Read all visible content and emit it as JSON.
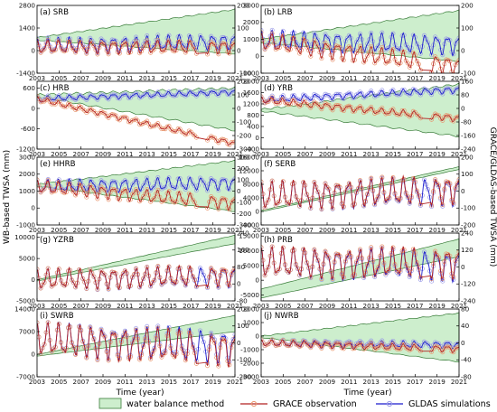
{
  "figure": {
    "y_left_title": "WB-based TWSA (mm)",
    "y_right_title": "GRACE/GLDAS-based TWSA (mm)",
    "x_title": "Time (year)",
    "x_tick_labels": [
      "2003",
      "2005",
      "2007",
      "2009",
      "2011",
      "2013",
      "2015",
      "2017",
      "2019",
      "2021"
    ],
    "legend": {
      "water_balance": "water balance method",
      "grace": "GRACE observation",
      "gldas": "GLDAS simulations"
    },
    "colors": {
      "band_fill": "#cdeecd",
      "band_edge": "#3a7d3a",
      "grace_line": "#b22222",
      "grace_marker": "#e8946c",
      "gldas_line": "#1a1acd",
      "gldas_marker": "#9a9ae6"
    }
  },
  "chart_data": [
    {
      "type": "area",
      "title": "(a) SRB",
      "xlim": [
        2003,
        2021
      ],
      "y_left": {
        "ticks": [
          -1400,
          0,
          1400,
          2800
        ],
        "tick_labels": [
          "-1400",
          "0",
          "1400",
          "2800"
        ],
        "range": [
          -1400,
          2800
        ]
      },
      "y_right": {
        "ticks": [
          -100,
          0,
          100,
          200
        ],
        "tick_labels": [
          "-100",
          "0",
          "100",
          "200"
        ],
        "range": [
          -100,
          200
        ]
      },
      "wb_band": {
        "year": [
          2003,
          2021
        ],
        "upper": [
          800,
          2550
        ],
        "lower": [
          650,
          -200
        ]
      },
      "grace": {
        "base": 15,
        "amp": 30,
        "cycles": 1,
        "trend": 0
      },
      "gldas": {
        "base": 20,
        "amp": 35,
        "cycles": 1,
        "trend": 20
      }
    },
    {
      "type": "area",
      "title": "(b) LRB",
      "xlim": [
        2003,
        2021
      ],
      "y_left": {
        "ticks": [
          -1000,
          0,
          1000,
          2000,
          3000
        ],
        "tick_labels": [
          "-1000",
          "0",
          "1000",
          "2000",
          "3000"
        ],
        "range": [
          -1000,
          3000
        ]
      },
      "y_right": {
        "ticks": [
          -100,
          0,
          100,
          200
        ],
        "tick_labels": [
          "-100",
          "0",
          "100",
          "200"
        ],
        "range": [
          -100,
          200
        ]
      },
      "wb_band": {
        "year": [
          2003,
          2021
        ],
        "upper": [
          1000,
          2700
        ],
        "lower": [
          800,
          -300
        ]
      },
      "grace": {
        "base": 40,
        "amp": 40,
        "cycles": 1,
        "trend": -110
      },
      "gldas": {
        "base": 45,
        "amp": 45,
        "cycles": 1,
        "trend": -20
      }
    },
    {
      "type": "area",
      "title": "(c) HRB",
      "xlim": [
        2003,
        2021
      ],
      "y_left": {
        "ticks": [
          -1200,
          -600,
          0,
          600
        ],
        "tick_labels": [
          "-1200",
          "-600",
          "0",
          "600"
        ],
        "range": [
          -1200,
          800
        ]
      },
      "y_right": {
        "ticks": [
          -300,
          -200,
          -100,
          0,
          100,
          200
        ],
        "tick_labels": [
          "-300",
          "-200",
          "-100",
          "0",
          "100",
          "200"
        ],
        "range": [
          -300,
          200
        ]
      },
      "wb_band": {
        "year": [
          2003,
          2021
        ],
        "upper": [
          400,
          600
        ],
        "lower": [
          350,
          -650
        ]
      },
      "grace": {
        "base": 70,
        "amp": 20,
        "cycles": 1,
        "trend": -330
      },
      "gldas": {
        "base": 70,
        "amp": 20,
        "cycles": 1,
        "trend": 50
      }
    },
    {
      "type": "area",
      "title": "(d) YRB",
      "xlim": [
        2003,
        2021
      ],
      "y_left": {
        "ticks": [
          -400,
          0,
          400,
          800,
          1200,
          1600,
          2000
        ],
        "tick_labels": [
          "-400",
          "0",
          "400",
          "800",
          "1200",
          "1600",
          "2000"
        ],
        "range": [
          -400,
          2000
        ]
      },
      "y_right": {
        "ticks": [
          -240,
          -160,
          -80,
          0,
          80,
          160
        ],
        "tick_labels": [
          "-240",
          "-160",
          "-80",
          "0",
          "80",
          "160"
        ],
        "range": [
          -240,
          160
        ]
      },
      "wb_band": {
        "year": [
          2003,
          2021
        ],
        "upper": [
          1000,
          1900
        ],
        "lower": [
          950,
          50
        ]
      },
      "grace": {
        "base": 50,
        "amp": 20,
        "cycles": 1,
        "trend": -110
      },
      "gldas": {
        "base": 50,
        "amp": 20,
        "cycles": 1,
        "trend": 60
      }
    },
    {
      "type": "area",
      "title": "(e) HHRB",
      "xlim": [
        2003,
        2021
      ],
      "y_left": {
        "ticks": [
          -1000,
          0,
          1000,
          2000,
          3000
        ],
        "tick_labels": [
          "-1000",
          "0",
          "1000",
          "2000",
          "3000"
        ],
        "range": [
          -1000,
          3000
        ]
      },
      "y_right": {
        "ticks": [
          -300,
          -200,
          -100,
          0,
          100,
          200,
          300
        ],
        "tick_labels": [
          "-300",
          "-200",
          "-100",
          "0",
          "100",
          "200",
          "300"
        ],
        "range": [
          -300,
          300
        ]
      },
      "wb_band": {
        "year": [
          2003,
          2021
        ],
        "upper": [
          1400,
          2800
        ],
        "lower": [
          1300,
          -200
        ]
      },
      "grace": {
        "base": 40,
        "amp": 60,
        "cycles": 1,
        "trend": -150
      },
      "gldas": {
        "base": 40,
        "amp": 60,
        "cycles": 1,
        "trend": 30
      }
    },
    {
      "type": "area",
      "title": "(f) SERB",
      "xlim": [
        2003,
        2021
      ],
      "y_left": {
        "ticks": [
          -4000,
          0,
          4000,
          8000,
          12000,
          16000
        ],
        "tick_labels": [
          "-4000",
          "0",
          "4000",
          "8000",
          "12000",
          "16000"
        ],
        "range": [
          -4000,
          16000
        ]
      },
      "y_right": {
        "ticks": [
          -200,
          -100,
          0,
          100,
          200
        ],
        "tick_labels": [
          "-200",
          "-100",
          "0",
          "100",
          "200"
        ],
        "range": [
          -200,
          200
        ]
      },
      "wb_band": {
        "year": [
          2003,
          2021
        ],
        "upper": [
          300,
          13200
        ],
        "lower": [
          -100,
          12400
        ]
      },
      "grace": {
        "base": -30,
        "amp": 85,
        "cycles": 1,
        "trend": 40
      },
      "gldas": {
        "base": -30,
        "amp": 85,
        "cycles": 1,
        "trend": 30
      }
    },
    {
      "type": "area",
      "title": "(g) YZRB",
      "xlim": [
        2003,
        2021
      ],
      "y_left": {
        "ticks": [
          -5000,
          0,
          5000,
          10000
        ],
        "tick_labels": [
          "-5000",
          "0",
          "5000",
          "10000"
        ],
        "range": [
          -5000,
          11000
        ]
      },
      "y_right": {
        "ticks": [
          -80,
          0,
          80,
          160,
          240
        ],
        "tick_labels": [
          "-80",
          "0",
          "80",
          "160",
          "240"
        ],
        "range": [
          -80,
          240
        ]
      },
      "wb_band": {
        "year": [
          2003,
          2021
        ],
        "upper": [
          0,
          10500
        ],
        "lower": [
          -300,
          8500
        ]
      },
      "grace": {
        "base": 20,
        "amp": 50,
        "cycles": 1,
        "trend": 20
      },
      "gldas": {
        "base": 20,
        "amp": 50,
        "cycles": 1,
        "trend": 15
      }
    },
    {
      "type": "area",
      "title": "(h) PRB",
      "xlim": [
        2003,
        2021
      ],
      "y_left": {
        "ticks": [
          -5000,
          0,
          5000,
          10000,
          15000
        ],
        "tick_labels": [
          "-5000",
          "0",
          "5000",
          "10000",
          "15000"
        ],
        "range": [
          -7000,
          16000
        ]
      },
      "y_right": {
        "ticks": [
          -240,
          -120,
          0,
          120,
          240
        ],
        "tick_labels": [
          "-240",
          "-120",
          "0",
          "120",
          "240"
        ],
        "range": [
          -240,
          240
        ]
      },
      "wb_band": {
        "year": [
          2003,
          2021
        ],
        "upper": [
          -3000,
          14000
        ],
        "lower": [
          -6000,
          8000
        ]
      },
      "grace": {
        "base": 30,
        "amp": 110,
        "cycles": 1,
        "trend": 0
      },
      "gldas": {
        "base": 30,
        "amp": 110,
        "cycles": 1,
        "trend": -20
      }
    },
    {
      "type": "area",
      "title": "(i) SWRB",
      "xlim": [
        2003,
        2021
      ],
      "y_left": {
        "ticks": [
          -7000,
          0,
          7000,
          14000
        ],
        "tick_labels": [
          "-7000",
          "0",
          "7000",
          "14000"
        ],
        "range": [
          -7000,
          14000
        ]
      },
      "y_right": {
        "ticks": [
          -200,
          -100,
          0,
          100,
          200
        ],
        "tick_labels": [
          "-200",
          "-100",
          "0",
          "100",
          "200"
        ],
        "range": [
          -200,
          200
        ]
      },
      "wb_band": {
        "year": [
          2003,
          2021
        ],
        "upper": [
          -100,
          12000
        ],
        "lower": [
          -600,
          7000
        ]
      },
      "grace": {
        "base": 20,
        "amp": 100,
        "cycles": 1,
        "trend": -60
      },
      "gldas": {
        "base": 20,
        "amp": 100,
        "cycles": 1,
        "trend": -40
      }
    },
    {
      "type": "area",
      "title": "(j) NWRB",
      "xlim": [
        2003,
        2021
      ],
      "y_left": {
        "ticks": [
          -3000,
          -2000,
          -1000,
          0,
          1000,
          2000
        ],
        "tick_labels": [
          "-3000",
          "-2000",
          "-1000",
          "0",
          "1000",
          "2000"
        ],
        "range": [
          -3000,
          2000
        ]
      },
      "y_right": {
        "ticks": [
          -80,
          -40,
          0,
          40,
          80
        ],
        "tick_labels": [
          "-80",
          "-40",
          "0",
          "40",
          "80"
        ],
        "range": [
          -80,
          80
        ]
      },
      "wb_band": {
        "year": [
          2003,
          2021
        ],
        "upper": [
          0,
          1700
        ],
        "lower": [
          -100,
          -1900
        ]
      },
      "grace": {
        "base": 0,
        "amp": 8,
        "cycles": 1,
        "trend": -15
      },
      "gldas": {
        "base": 0,
        "amp": 8,
        "cycles": 1,
        "trend": -5
      }
    }
  ]
}
